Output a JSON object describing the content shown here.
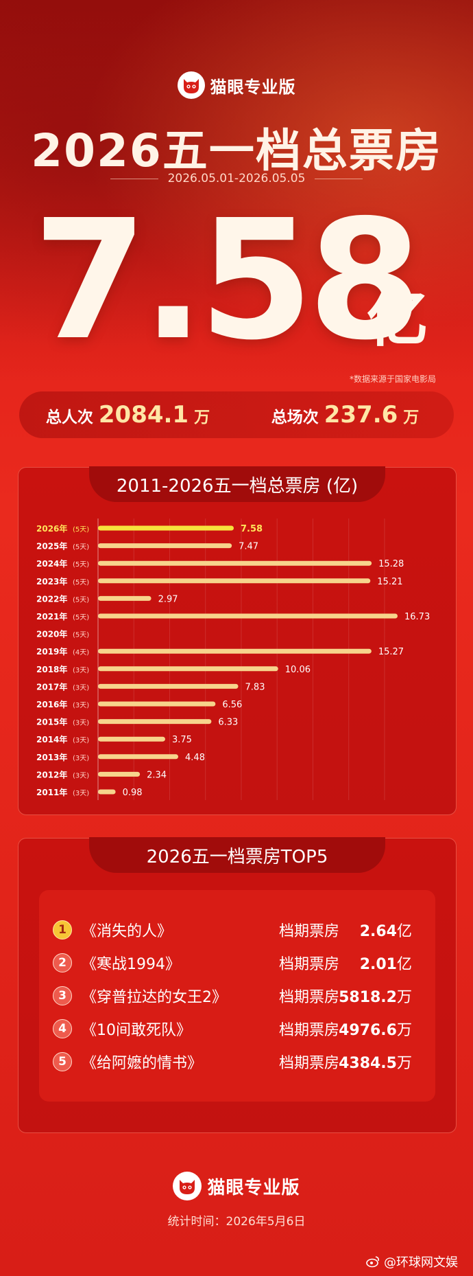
{
  "brand": "猫眼专业版",
  "title": "2026五一档总票房",
  "date_range": "2026.05.01-2026.05.05",
  "total_box_office": "7.58",
  "total_unit": "亿",
  "source_note": "*数据来源于国家电影局",
  "stats": {
    "admissions_label": "总人次",
    "admissions_value": "2084.1",
    "admissions_unit": "万",
    "screenings_label": "总场次",
    "screenings_value": "237.6",
    "screenings_unit": "万"
  },
  "colors": {
    "background": "#e2241a",
    "bar": "#f7d48c",
    "bar_highlight": "#f6e23c",
    "panel": "#c9120f"
  },
  "chart_data": {
    "type": "bar",
    "orientation": "horizontal",
    "title": "2011-2026五一档总票房 (亿)",
    "categories": [
      "2026年",
      "2025年",
      "2024年",
      "2023年",
      "2022年",
      "2021年",
      "2020年",
      "2019年",
      "2018年",
      "2017年",
      "2016年",
      "2015年",
      "2014年",
      "2013年",
      "2012年",
      "2011年"
    ],
    "days": [
      "(5天)",
      "(5天)",
      "(5天)",
      "(5天)",
      "(5天)",
      "(5天)",
      "(5天)",
      "(4天)",
      "(3天)",
      "(3天)",
      "(3天)",
      "(3天)",
      "(3天)",
      "(3天)",
      "(3天)",
      "(3天)"
    ],
    "values": [
      7.58,
      7.47,
      15.28,
      15.21,
      2.97,
      16.73,
      null,
      15.27,
      10.06,
      7.83,
      6.56,
      6.33,
      3.75,
      4.48,
      2.34,
      0.98
    ],
    "value_labels": [
      "7.58",
      "7.47",
      "15.28",
      "15.21",
      "2.97",
      "16.73",
      "",
      "15.27",
      "10.06",
      "7.83",
      "6.56",
      "6.33",
      "3.75",
      "4.48",
      "2.34",
      "0.98"
    ],
    "highlight": "2026年",
    "xlim": [
      0,
      18
    ],
    "grid": true
  },
  "top5": {
    "title": "2026五一档票房TOP5",
    "tag": "档期票房",
    "items": [
      {
        "rank": "1",
        "name": "《消失的人》",
        "value": "2.64",
        "unit": "亿"
      },
      {
        "rank": "2",
        "name": "《寒战1994》",
        "value": "2.01",
        "unit": "亿"
      },
      {
        "rank": "3",
        "name": "《穿普拉达的女王2》",
        "value": "5818.2",
        "unit": "万"
      },
      {
        "rank": "4",
        "name": "《10间敢死队》",
        "value": "4976.6",
        "unit": "万"
      },
      {
        "rank": "5",
        "name": "《给阿嬷的情书》",
        "value": "4384.5",
        "unit": "万"
      }
    ]
  },
  "footer": {
    "brand": "猫眼专业版",
    "timestamp": "统计时间：2026年5月6日",
    "watermark": "@环球网文娱"
  }
}
